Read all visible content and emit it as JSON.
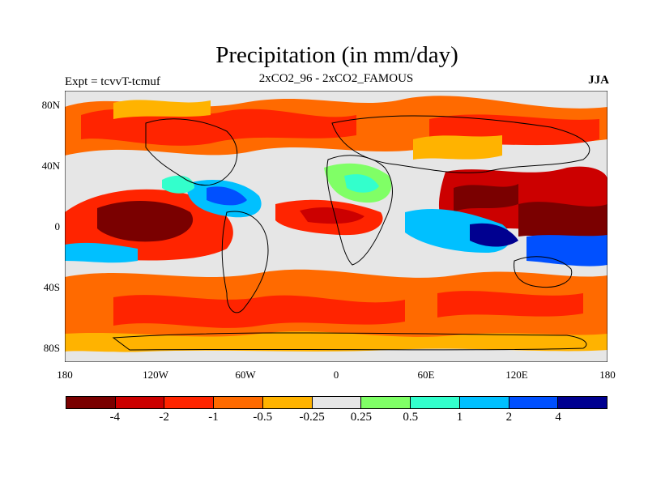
{
  "title": "Precipitation (in mm/day)",
  "subtitle": "2xCO2_96 - 2xCO2_FAMOUS",
  "experiment": "Expt = tcvvT-tcmuf",
  "season": "JJA",
  "lat_ticks": [
    "80N",
    "40N",
    "0",
    "40S",
    "80S"
  ],
  "lon_ticks": [
    "180",
    "120W",
    "60W",
    "0",
    "60E",
    "120E",
    "180"
  ],
  "colorbar": {
    "colors": [
      "#7a0000",
      "#cc0000",
      "#ff2400",
      "#ff6a00",
      "#ffb300",
      "#e6e6e6",
      "#80ff66",
      "#33ffcc",
      "#00c0ff",
      "#0050ff",
      "#000090"
    ],
    "labels": [
      "-4",
      "-2",
      "-1",
      "-0.5",
      "-0.25",
      "0.25",
      "0.5",
      "1",
      "2",
      "4"
    ]
  }
}
